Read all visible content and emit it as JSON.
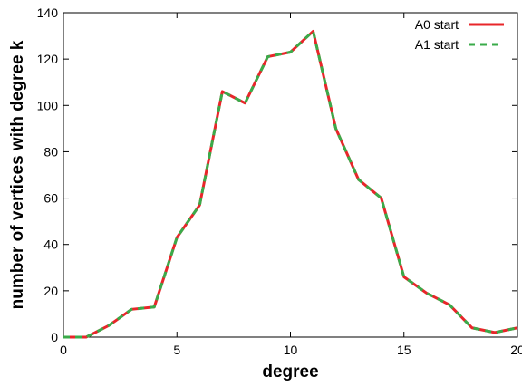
{
  "chart_data": {
    "type": "line",
    "title": "",
    "xlabel": "degree",
    "ylabel": "number of vertices with degree k",
    "xlim": [
      0,
      20
    ],
    "ylim": [
      0,
      140
    ],
    "x_ticks": [
      0,
      5,
      10,
      15,
      20
    ],
    "y_ticks": [
      0,
      20,
      40,
      60,
      80,
      100,
      120,
      140
    ],
    "x_tick_labels": [
      "0",
      "5",
      "10",
      "15",
      "20"
    ],
    "y_tick_labels": [
      "0",
      "20",
      "40",
      "60",
      "80",
      "100",
      "120",
      "140"
    ],
    "grid": false,
    "legend_position": "top-right",
    "x": [
      0,
      1,
      2,
      3,
      4,
      5,
      6,
      7,
      8,
      9,
      10,
      11,
      12,
      13,
      14,
      15,
      16,
      17,
      18,
      19,
      20
    ],
    "series": [
      {
        "name": "A0 start",
        "color": "#e8262a",
        "values": [
          0,
          0,
          5,
          12,
          13,
          43,
          57,
          106,
          101,
          121,
          123,
          132,
          90,
          68,
          60,
          26,
          19,
          14,
          4,
          2,
          4
        ]
      },
      {
        "name": "A1 start",
        "color": "#3aab4a",
        "values": [
          0,
          0,
          5,
          12,
          13,
          43,
          57,
          106,
          101,
          121,
          123,
          132,
          90,
          68,
          60,
          26,
          19,
          14,
          4,
          2,
          4
        ]
      }
    ]
  }
}
